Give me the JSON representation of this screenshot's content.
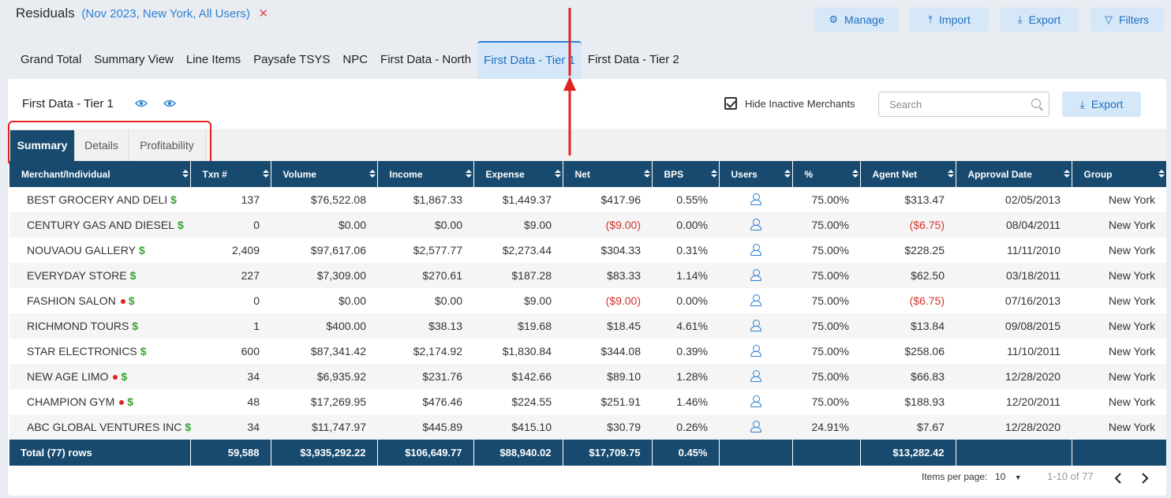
{
  "header": {
    "title": "Residuals",
    "subtitle": "(Nov 2023, New York, All Users)",
    "clear_icon": "✕",
    "buttons": {
      "manage": "Manage",
      "import": "Import",
      "export": "Export",
      "filters": "Filters"
    }
  },
  "tabs": [
    "Grand Total",
    "Summary View",
    "Line Items",
    "Paysafe TSYS",
    "NPC",
    "First Data - North",
    "First Data - Tier 1",
    "First Data - Tier 2"
  ],
  "active_tab": "First Data - Tier 1",
  "panel": {
    "title": "First Data - Tier 1",
    "hide_inactive_label": "Hide Inactive Merchants",
    "hide_inactive_checked": true,
    "search_placeholder": "Search",
    "export_label": "Export",
    "subtabs": [
      "Summary",
      "Details",
      "Profitability"
    ],
    "active_subtab": "Summary"
  },
  "table": {
    "columns": [
      "Merchant/Individual",
      "Txn #",
      "Volume",
      "Income",
      "Expense",
      "Net",
      "BPS",
      "Users",
      "%",
      "Agent Net",
      "Approval Date",
      "Group"
    ],
    "rows": [
      {
        "merchant": "BEST GROCERY AND DELI",
        "inactive": false,
        "txn": "137",
        "volume": "$76,522.08",
        "income": "$1,867.33",
        "expense": "$1,449.37",
        "net": "$417.96",
        "bps": "0.55%",
        "pct": "75.00%",
        "agent_net": "$313.47",
        "approval": "02/05/2013",
        "group": "New York"
      },
      {
        "merchant": "CENTURY GAS AND DIESEL",
        "inactive": false,
        "txn": "0",
        "volume": "$0.00",
        "income": "$0.00",
        "expense": "$9.00",
        "net": "($9.00)",
        "bps": "0.00%",
        "pct": "75.00%",
        "agent_net": "($6.75)",
        "approval": "08/04/2011",
        "group": "New York"
      },
      {
        "merchant": "NOUVAOU GALLERY",
        "inactive": false,
        "txn": "2,409",
        "volume": "$97,617.06",
        "income": "$2,577.77",
        "expense": "$2,273.44",
        "net": "$304.33",
        "bps": "0.31%",
        "pct": "75.00%",
        "agent_net": "$228.25",
        "approval": "11/11/2010",
        "group": "New York"
      },
      {
        "merchant": "EVERYDAY STORE",
        "inactive": false,
        "txn": "227",
        "volume": "$7,309.00",
        "income": "$270.61",
        "expense": "$187.28",
        "net": "$83.33",
        "bps": "1.14%",
        "pct": "75.00%",
        "agent_net": "$62.50",
        "approval": "03/18/2011",
        "group": "New York"
      },
      {
        "merchant": "FASHION SALON",
        "inactive": true,
        "txn": "0",
        "volume": "$0.00",
        "income": "$0.00",
        "expense": "$9.00",
        "net": "($9.00)",
        "bps": "0.00%",
        "pct": "75.00%",
        "agent_net": "($6.75)",
        "approval": "07/16/2013",
        "group": "New York"
      },
      {
        "merchant": "RICHMOND TOURS",
        "inactive": false,
        "txn": "1",
        "volume": "$400.00",
        "income": "$38.13",
        "expense": "$19.68",
        "net": "$18.45",
        "bps": "4.61%",
        "pct": "75.00%",
        "agent_net": "$13.84",
        "approval": "09/08/2015",
        "group": "New York"
      },
      {
        "merchant": "STAR ELECTRONICS",
        "inactive": false,
        "txn": "600",
        "volume": "$87,341.42",
        "income": "$2,174.92",
        "expense": "$1,830.84",
        "net": "$344.08",
        "bps": "0.39%",
        "pct": "75.00%",
        "agent_net": "$258.06",
        "approval": "11/10/2011",
        "group": "New York"
      },
      {
        "merchant": "NEW AGE LIMO",
        "inactive": true,
        "txn": "34",
        "volume": "$6,935.92",
        "income": "$231.76",
        "expense": "$142.66",
        "net": "$89.10",
        "bps": "1.28%",
        "pct": "75.00%",
        "agent_net": "$66.83",
        "approval": "12/28/2020",
        "group": "New York"
      },
      {
        "merchant": "CHAMPION GYM",
        "inactive": true,
        "txn": "48",
        "volume": "$17,269.95",
        "income": "$476.46",
        "expense": "$224.55",
        "net": "$251.91",
        "bps": "1.46%",
        "pct": "75.00%",
        "agent_net": "$188.93",
        "approval": "12/20/2011",
        "group": "New York"
      },
      {
        "merchant": "ABC GLOBAL VENTURES INC",
        "inactive": false,
        "txn": "34",
        "volume": "$11,747.97",
        "income": "$445.89",
        "expense": "$415.10",
        "net": "$30.79",
        "bps": "0.26%",
        "pct": "24.91%",
        "agent_net": "$7.67",
        "approval": "12/28/2020",
        "group": "New York"
      }
    ],
    "totals": {
      "label": "Total (77) rows",
      "txn": "59,588",
      "volume": "$3,935,292.22",
      "income": "$106,649.77",
      "expense": "$88,940.02",
      "net": "$17,709.75",
      "bps": "0.45%",
      "users": "",
      "pct": "",
      "agent_net": "$13,282.42",
      "approval": "",
      "group": ""
    }
  },
  "pagination": {
    "items_per_page_label": "Items per page:",
    "items_per_page": "10",
    "range": "1-10 of 77"
  },
  "colors": {
    "accent": "#2f80d1",
    "header_bg": "#174a6e",
    "negative": "#d4332b",
    "dollar": "#3aa335",
    "annotation": "#e02424"
  }
}
